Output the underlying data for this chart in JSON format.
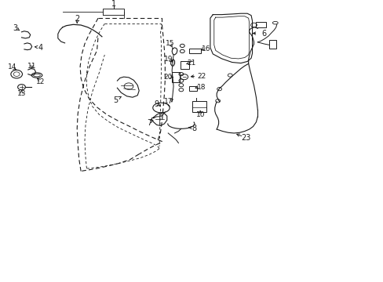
{
  "bg_color": "#ffffff",
  "line_color": "#1a1a1a",
  "figsize": [
    4.89,
    3.6
  ],
  "dpi": 100,
  "xlim": [
    0,
    10
  ],
  "ylim": [
    0,
    10
  ]
}
